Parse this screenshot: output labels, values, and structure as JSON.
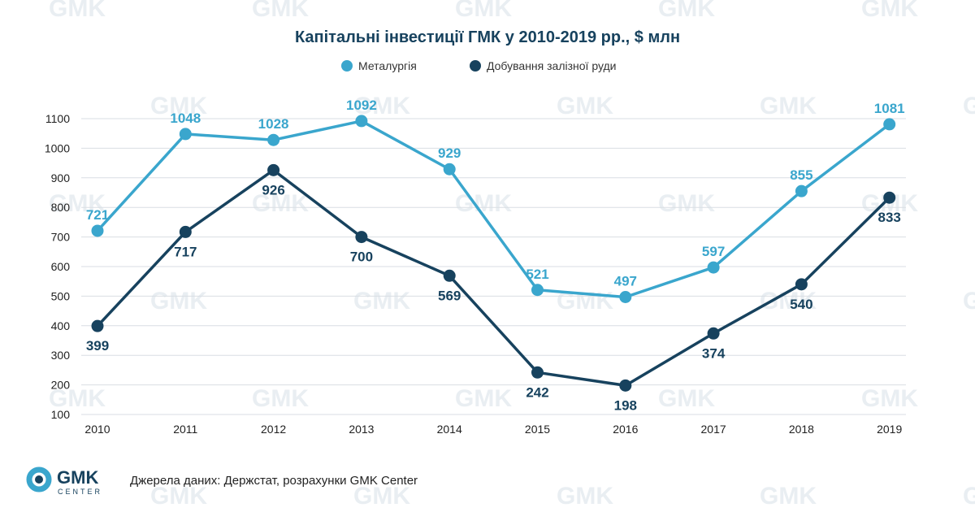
{
  "brand": {
    "name": "GMK",
    "sub": "CENTER"
  },
  "source_text": "Джерела даних: Держстат, розрахунки GMK Center",
  "colors": {
    "metallurgy": "#3aa6cd",
    "iron_ore": "#17425e",
    "title": "#17425e",
    "grid": "#d9dee3"
  },
  "chart_data": {
    "type": "line",
    "title": "Капітальні інвестиції ГМК у 2010-2019 рр., $ млн",
    "xlabel": "",
    "ylabel": "",
    "categories": [
      "2010",
      "2011",
      "2012",
      "2013",
      "2014",
      "2015",
      "2016",
      "2017",
      "2018",
      "2019"
    ],
    "yticks": [
      100,
      200,
      300,
      400,
      500,
      600,
      700,
      800,
      900,
      1000,
      1100
    ],
    "ylim": [
      100,
      1100
    ],
    "grid": true,
    "legend_position": "top-center",
    "series": [
      {
        "name": "Металургія",
        "color": "#3aa6cd",
        "label_position": "above",
        "values": [
          721,
          1048,
          1028,
          1092,
          929,
          521,
          497,
          597,
          855,
          1081
        ]
      },
      {
        "name": "Добування залізної руди",
        "color": "#17425e",
        "label_position": "below",
        "values": [
          399,
          717,
          926,
          700,
          569,
          242,
          198,
          374,
          540,
          833
        ]
      }
    ]
  }
}
